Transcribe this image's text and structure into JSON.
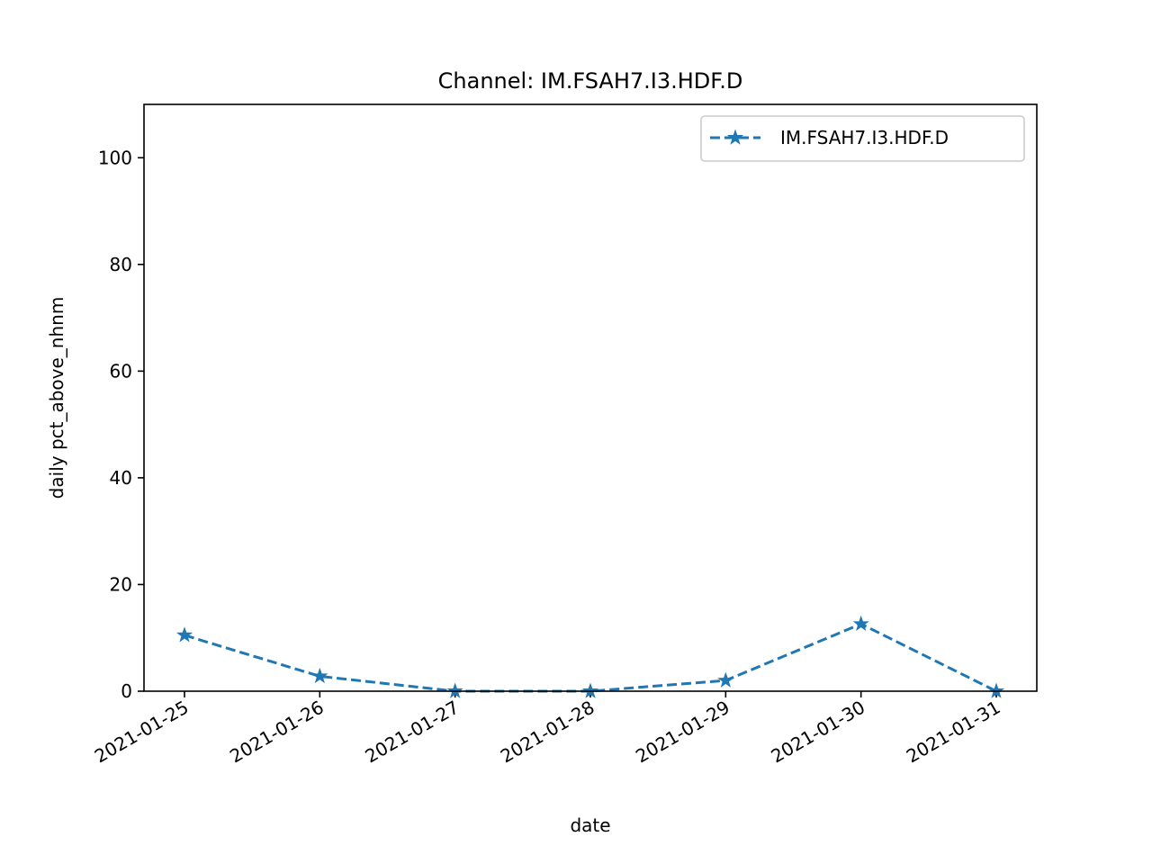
{
  "chart_data": {
    "type": "line",
    "title": "Channel: IM.FSAH7.I3.HDF.D",
    "xlabel": "date",
    "ylabel": "daily pct_above_nhnm",
    "x": [
      "2021-01-25",
      "2021-01-26",
      "2021-01-27",
      "2021-01-28",
      "2021-01-29",
      "2021-01-30",
      "2021-01-31"
    ],
    "x_tick_labels": [
      "2021-01-25",
      "2021-01-26",
      "2021-01-27",
      "2021-01-28",
      "2021-01-29",
      "2021-01-30",
      "2021-01-31"
    ],
    "ylim": [
      0,
      110
    ],
    "y_ticks": [
      0,
      20,
      40,
      60,
      80,
      100
    ],
    "y_tick_labels": [
      "0",
      "20",
      "40",
      "60",
      "80",
      "100"
    ],
    "series": [
      {
        "name": "IM.FSAH7.I3.HDF.D",
        "values": [
          10.5,
          2.8,
          0,
          0,
          2.0,
          12.6,
          0
        ],
        "color": "#1f77b4",
        "line_style": "dashed",
        "marker": "star"
      }
    ],
    "legend_position": "top-right",
    "grid": false
  }
}
